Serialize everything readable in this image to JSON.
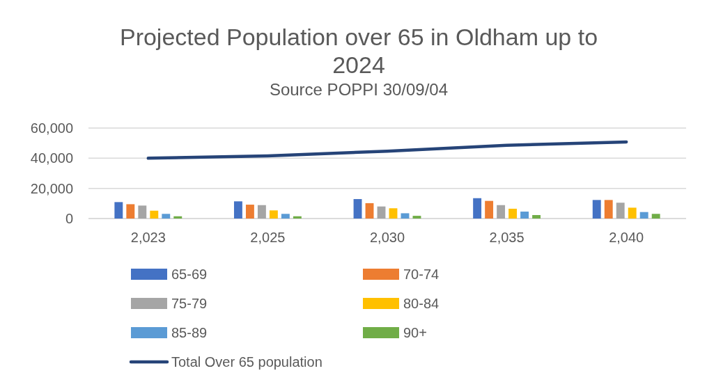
{
  "chart_data": {
    "type": "bar",
    "title": "Projected Population over 65 in Oldham up to 2024",
    "subtitle": "Source POPPI 30/09/04",
    "categories": [
      "2,023",
      "2,025",
      "2,030",
      "2,035",
      "2,040"
    ],
    "series": [
      {
        "name": "65-69",
        "color": "#4472c4",
        "values": [
          10900,
          11400,
          12900,
          13500,
          12300
        ]
      },
      {
        "name": "70-74",
        "color": "#ed7d31",
        "values": [
          9500,
          9200,
          10200,
          11700,
          12300
        ]
      },
      {
        "name": "75-79",
        "color": "#a5a5a5",
        "values": [
          8600,
          8900,
          8000,
          8900,
          10500
        ]
      },
      {
        "name": "80-84",
        "color": "#ffc000",
        "values": [
          5200,
          5400,
          6800,
          6500,
          7200
        ]
      },
      {
        "name": "85-89",
        "color": "#5b9bd5",
        "values": [
          3100,
          3100,
          3500,
          4600,
          4300
        ]
      },
      {
        "name": "90+",
        "color": "#70ad47",
        "values": [
          1500,
          1500,
          1800,
          2300,
          3100
        ]
      },
      {
        "name": "Total Over 65 population",
        "type": "line",
        "color": "#264478",
        "values": [
          40000,
          41500,
          44700,
          48600,
          50800
        ]
      }
    ],
    "ylim": [
      0,
      60000
    ],
    "yticks": [
      {
        "value": 0,
        "label": "0"
      },
      {
        "value": 20000,
        "label": "20,000"
      },
      {
        "value": 40000,
        "label": "40,000"
      },
      {
        "value": 60000,
        "label": "60,000"
      }
    ],
    "grid": "y",
    "legend": "bottom"
  }
}
